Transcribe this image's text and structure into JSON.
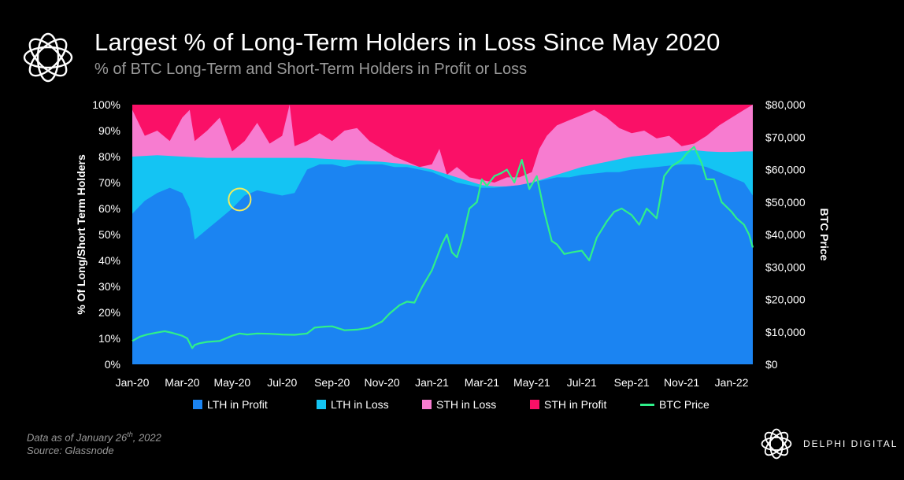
{
  "header": {
    "title": "Largest % of Long-Term Holders in Loss Since May 2020",
    "subtitle": "% of BTC Long-Term and Short-Term Holders in Profit or Loss"
  },
  "footer": {
    "note_prefix": "Data as of January 26",
    "note_sup": "th",
    "note_suffix": ", 2022",
    "source": "Source:  Glassnode",
    "brand": "DELPHI DIGITAL"
  },
  "colors": {
    "lth_profit": "#1b84f2",
    "lth_loss": "#14c4f3",
    "sth_loss": "#f77cd0",
    "sth_profit": "#fa1067",
    "btc_price": "#2ff08a",
    "highlight": "#f1ec5c"
  },
  "chart_data": {
    "type": "area",
    "title": "Largest % of Long-Term Holders in Loss Since May 2020",
    "ylabel": "% Of Long/Short Term Holders",
    "y2label": "BTC Price",
    "ylim": [
      0,
      100
    ],
    "y2lim": [
      0,
      80000
    ],
    "y_ticks": [
      "0%",
      "10%",
      "20%",
      "30%",
      "40%",
      "50%",
      "60%",
      "70%",
      "80%",
      "90%",
      "100%"
    ],
    "y2_ticks": [
      "$0",
      "$10,000",
      "$20,000",
      "$30,000",
      "$40,000",
      "$50,000",
      "$60,000",
      "$70,000",
      "$80,000"
    ],
    "x_ticks": [
      "Jan-20",
      "Mar-20",
      "May-20",
      "Jul-20",
      "Sep-20",
      "Nov-20",
      "Jan-21",
      "Mar-21",
      "May-21",
      "Jul-21",
      "Sep-21",
      "Nov-21",
      "Jan-22"
    ],
    "x_months": [
      0,
      2,
      4,
      6,
      8,
      10,
      12,
      14,
      16,
      18,
      20,
      22,
      24
    ],
    "x_range_months": [
      0,
      24.85
    ],
    "annotation": "yellow circle marking LTH in Loss low around May-20",
    "annotation_month": 4.3,
    "annotation_value": 63.5,
    "stack_order": [
      "LTH in Profit",
      "LTH in Loss",
      "STH in Loss",
      "STH in Profit"
    ],
    "series": [
      {
        "name": "LTH in Profit",
        "unit": "% (top of layer)",
        "months": [
          0,
          0.5,
          1,
          1.5,
          2,
          2.3,
          2.5,
          3,
          3.5,
          4,
          4.5,
          5,
          5.5,
          6,
          6.5,
          7,
          7.5,
          8,
          8.5,
          9,
          9.5,
          10,
          10.5,
          11,
          11.5,
          12,
          12.5,
          13,
          13.5,
          14,
          14.5,
          15,
          15.5,
          16,
          16.5,
          17,
          17.5,
          18,
          18.5,
          19,
          19.5,
          20,
          20.5,
          21,
          21.5,
          22,
          22.5,
          23,
          23.5,
          24,
          24.5,
          24.85
        ],
        "values": [
          58,
          63,
          66,
          68,
          66,
          60,
          48,
          52,
          56,
          60,
          65,
          67,
          66,
          65,
          66,
          75,
          77,
          77,
          76,
          77,
          77,
          77,
          76,
          76,
          75,
          74,
          72,
          70,
          69,
          68,
          68,
          68.5,
          69,
          70,
          71,
          72,
          72,
          73,
          73.5,
          74,
          74,
          75,
          75.5,
          76,
          76.5,
          77,
          77,
          76,
          74,
          72,
          70,
          65
        ]
      },
      {
        "name": "LTH in Loss",
        "unit": "% (top of layer)",
        "months": [
          0,
          1,
          2,
          3,
          4,
          5,
          6,
          7,
          8,
          9,
          10,
          11,
          12,
          12.5,
          13,
          13.5,
          14,
          14.5,
          15,
          15.5,
          16,
          16.5,
          17,
          17.5,
          18,
          18.5,
          19,
          19.5,
          20,
          20.5,
          21,
          21.5,
          22,
          22.5,
          23,
          23.5,
          24,
          24.5,
          24.85
        ],
        "values": [
          80,
          80.5,
          80,
          79.5,
          79.5,
          79.5,
          79.5,
          79.5,
          79,
          78.5,
          78,
          77,
          75,
          73.5,
          72,
          70.5,
          69,
          68.5,
          68.5,
          69,
          70,
          71.5,
          73,
          74.5,
          76,
          77,
          78,
          79,
          80,
          80.5,
          81,
          81.5,
          82,
          82.5,
          82,
          81.8,
          81.8,
          82,
          82
        ]
      },
      {
        "name": "STH in Loss",
        "unit": "% (top of layer)",
        "months": [
          0,
          0.5,
          1,
          1.5,
          2,
          2.3,
          2.5,
          3,
          3.5,
          4,
          4.5,
          5,
          5.5,
          6,
          6.3,
          6.5,
          7,
          7.5,
          8,
          8.5,
          9,
          9.5,
          10,
          10.5,
          11,
          11.5,
          12,
          12.3,
          12.6,
          13,
          13.5,
          14,
          14.5,
          15,
          15.5,
          16,
          16.3,
          16.6,
          17,
          17.5,
          18,
          18.5,
          19,
          19.5,
          20,
          20.5,
          21,
          21.5,
          22,
          22.5,
          23,
          23.5,
          24,
          24.5,
          24.85
        ],
        "values": [
          98,
          88,
          90,
          86,
          95,
          98,
          86,
          90,
          95,
          82,
          86,
          93,
          85,
          88,
          100,
          84,
          86,
          89,
          86,
          90,
          91,
          86,
          83,
          80,
          78,
          76,
          77,
          83,
          73,
          76,
          72,
          71,
          70,
          72,
          72,
          74,
          83,
          88,
          92,
          94,
          96,
          98,
          95,
          91,
          89,
          90,
          87,
          88,
          84,
          85,
          88,
          92,
          95,
          98,
          100
        ]
      },
      {
        "name": "STH in Profit",
        "unit": "% (top of layer)",
        "values_note": "fills remainder to 100%",
        "months": [
          0,
          24.85
        ],
        "values": [
          100,
          100
        ]
      },
      {
        "name": "BTC Price",
        "axis": "right",
        "unit": "USD",
        "months": [
          0,
          0.3,
          0.6,
          1,
          1.3,
          1.6,
          2,
          2.2,
          2.4,
          2.5,
          2.7,
          3,
          3.5,
          4,
          4.3,
          4.6,
          5,
          5.5,
          6,
          6.5,
          7,
          7.3,
          7.7,
          8,
          8.5,
          9,
          9.5,
          10,
          10.3,
          10.7,
          11,
          11.3,
          11.6,
          12,
          12.2,
          12.4,
          12.6,
          12.8,
          13,
          13.2,
          13.5,
          13.8,
          14,
          14.2,
          14.5,
          14.8,
          15,
          15.3,
          15.6,
          15.9,
          16.2,
          16.5,
          16.8,
          17,
          17.3,
          17.6,
          18,
          18.3,
          18.6,
          19,
          19.3,
          19.6,
          20,
          20.3,
          20.6,
          21,
          21.3,
          21.6,
          22,
          22.2,
          22.5,
          22.8,
          23,
          23.3,
          23.6,
          24,
          24.2,
          24.5,
          24.7,
          24.85
        ],
        "values": [
          7200,
          8500,
          9200,
          9800,
          10200,
          9700,
          8800,
          8000,
          5000,
          6000,
          6500,
          6900,
          7200,
          8800,
          9500,
          9200,
          9500,
          9400,
          9200,
          9100,
          9500,
          11300,
          11600,
          11700,
          10500,
          10700,
          11300,
          13200,
          15600,
          18200,
          19300,
          19000,
          23700,
          29000,
          33000,
          37000,
          40000,
          34500,
          33000,
          38000,
          48000,
          50000,
          57000,
          55000,
          58000,
          59000,
          60000,
          56000,
          63000,
          54000,
          58000,
          47000,
          38000,
          37000,
          34000,
          34500,
          35000,
          32000,
          39000,
          44000,
          47000,
          48000,
          46000,
          43000,
          48000,
          45000,
          58000,
          61000,
          63000,
          65000,
          67000,
          62000,
          57000,
          57000,
          50000,
          47000,
          45000,
          43000,
          40000,
          36000
        ]
      }
    ]
  }
}
